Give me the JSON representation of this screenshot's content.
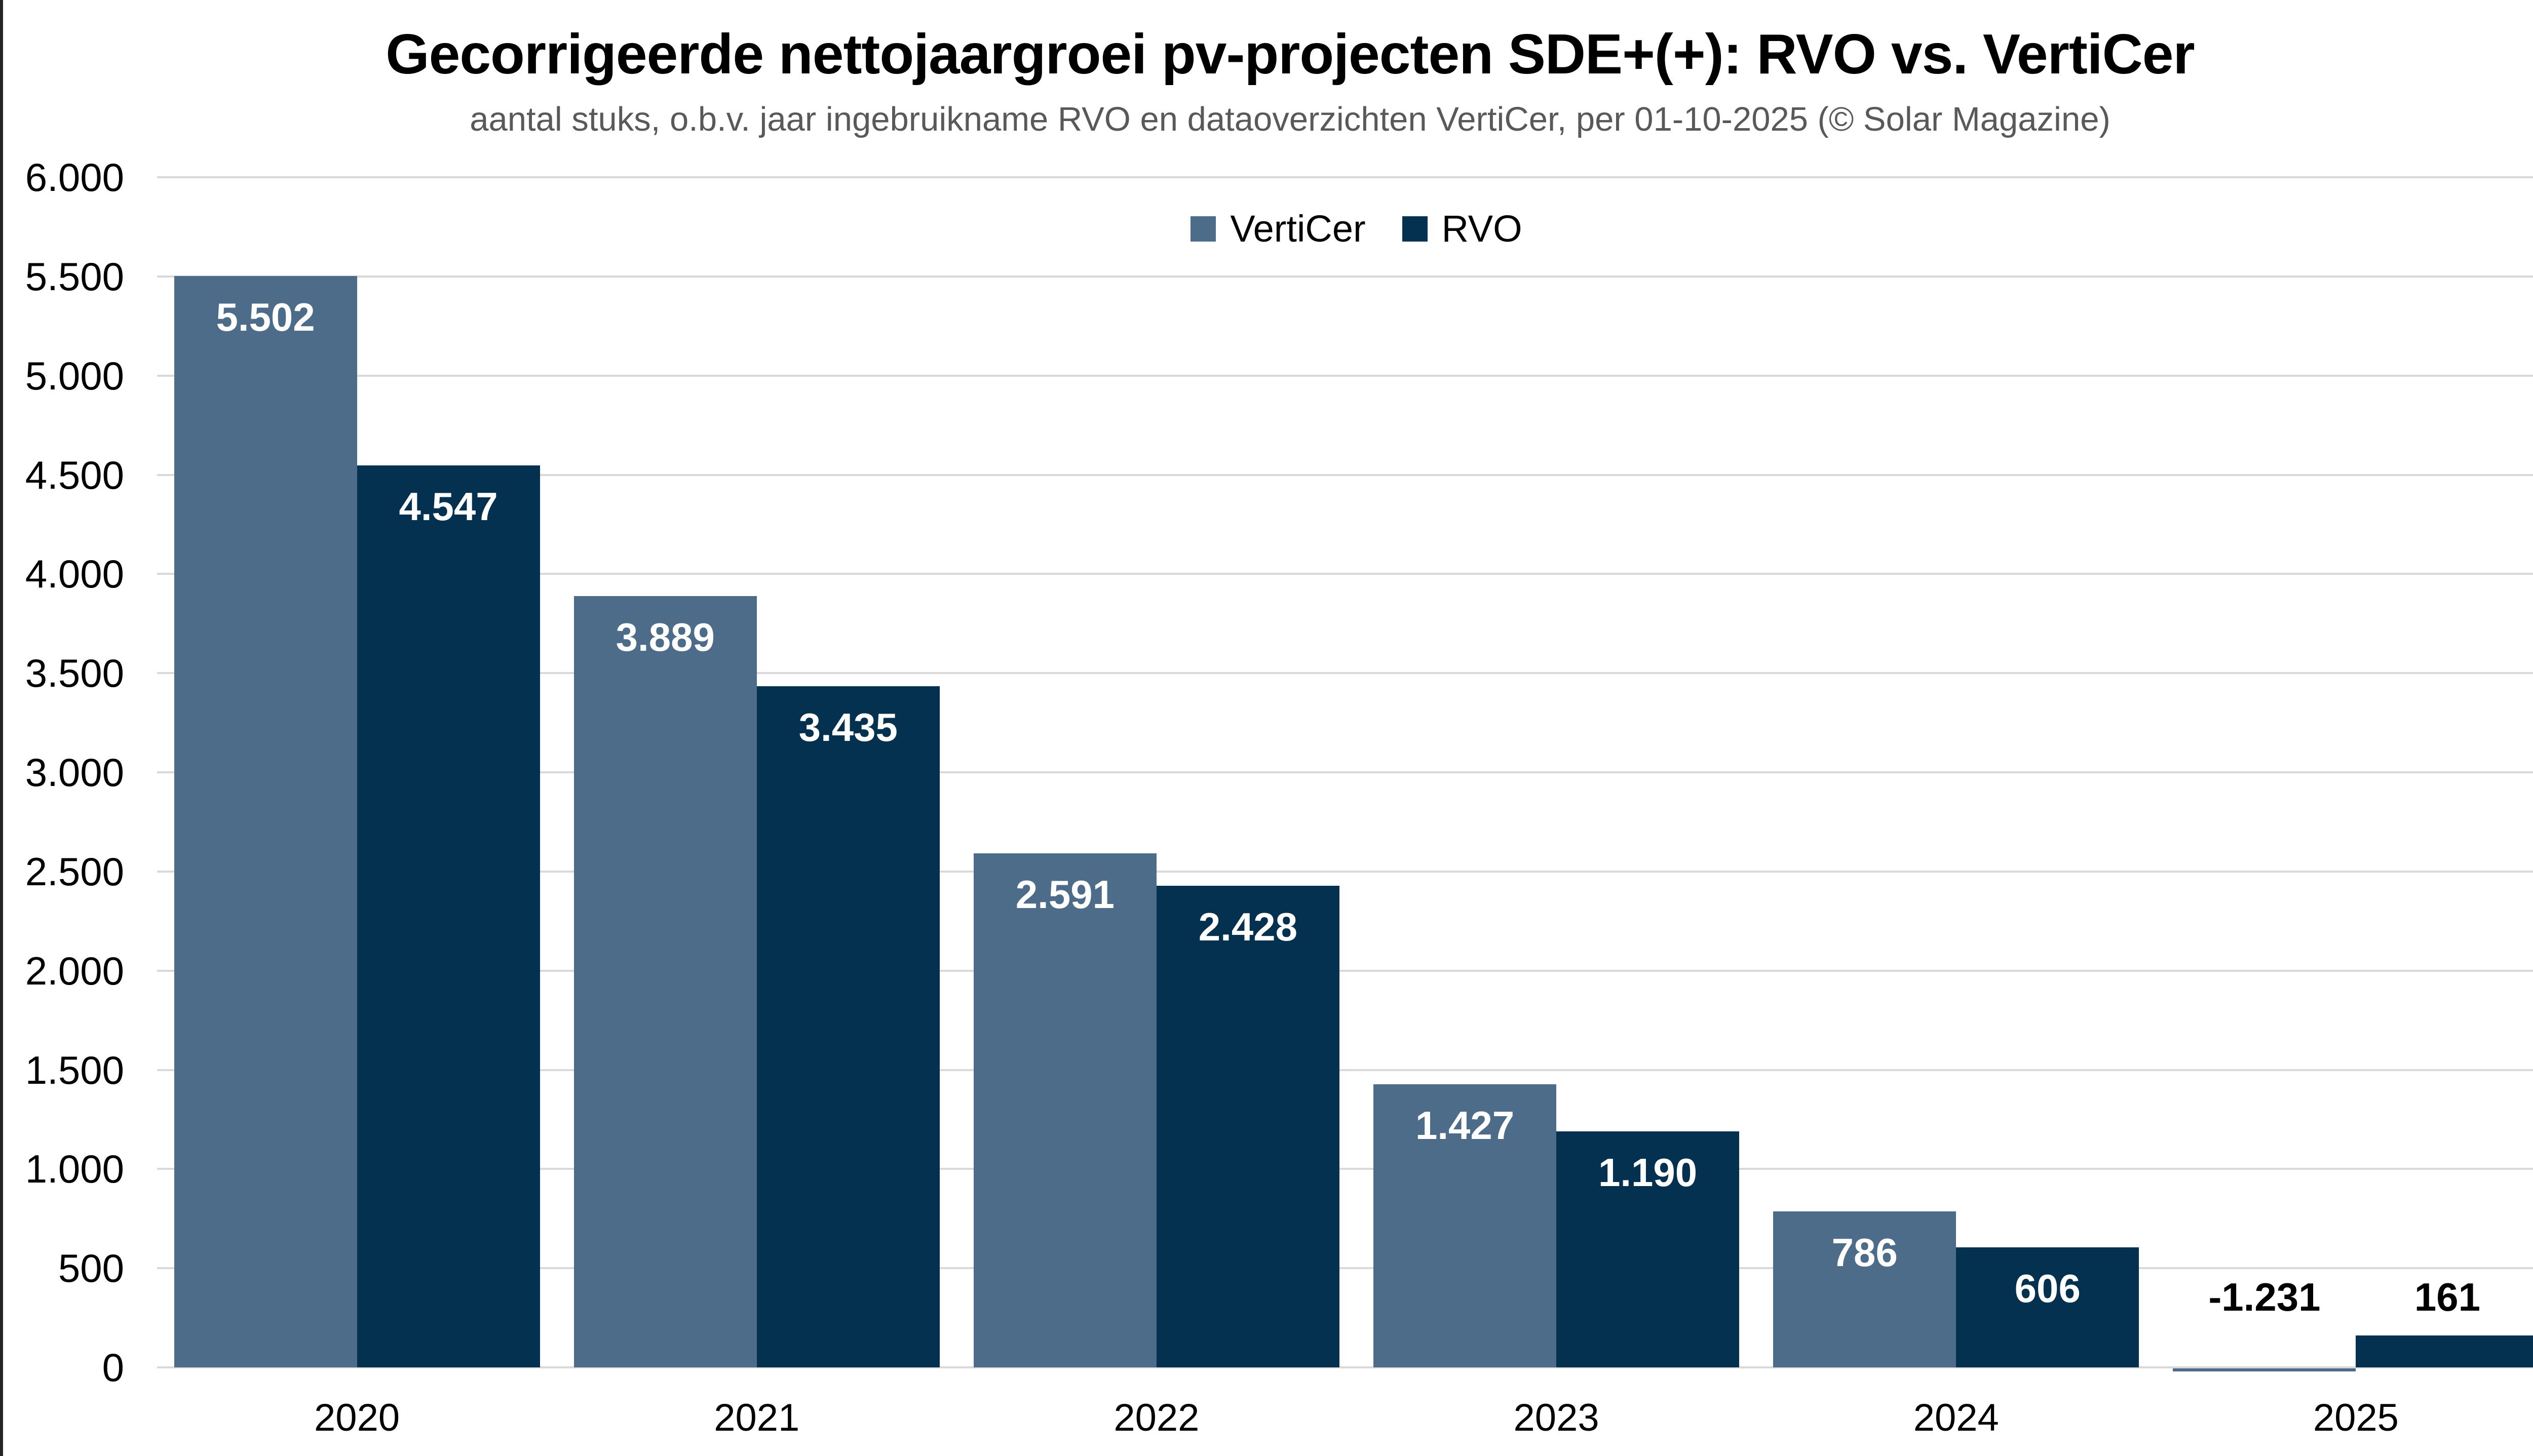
{
  "page": {
    "background": "#ffffff",
    "left_border_color": "#262626"
  },
  "chart_data": {
    "type": "bar",
    "title": "Gecorrigeerde nettojaargroei pv-projecten SDE+(+): RVO vs. VertiCer",
    "subtitle": "aantal stuks, o.b.v. jaar ingebruikname RVO en dataoverzichten VertiCer, per 01-10-2025 (© Solar Magazine)",
    "categories": [
      "2020",
      "2021",
      "2022",
      "2023",
      "2024",
      "2025"
    ],
    "series": [
      {
        "name": "VertiCer",
        "color": "#4d6c89",
        "values": [
          5502,
          3889,
          2591,
          1427,
          786,
          -1231
        ],
        "labels": [
          "5.502",
          "3.889",
          "2.591",
          "1.427",
          "786",
          "-1.231"
        ]
      },
      {
        "name": "RVO",
        "color": "#053150",
        "values": [
          4547,
          3435,
          2428,
          1190,
          606,
          161
        ],
        "labels": [
          "4.547",
          "3.435",
          "2.428",
          "1.190",
          "606",
          "161"
        ]
      }
    ],
    "y_axis": {
      "min": 0,
      "max": 6000,
      "step": 500,
      "tick_labels": [
        "0",
        "500",
        "1.000",
        "1.500",
        "2.000",
        "2.500",
        "3.000",
        "3.500",
        "4.000",
        "4.500",
        "5.000",
        "5.500",
        "6.000"
      ]
    },
    "grid": true,
    "gridline_color": "#d9d9d9",
    "legend_position": "top",
    "bar_label_color_inside": "#ffffff",
    "bar_label_color_outside": "#000000"
  }
}
